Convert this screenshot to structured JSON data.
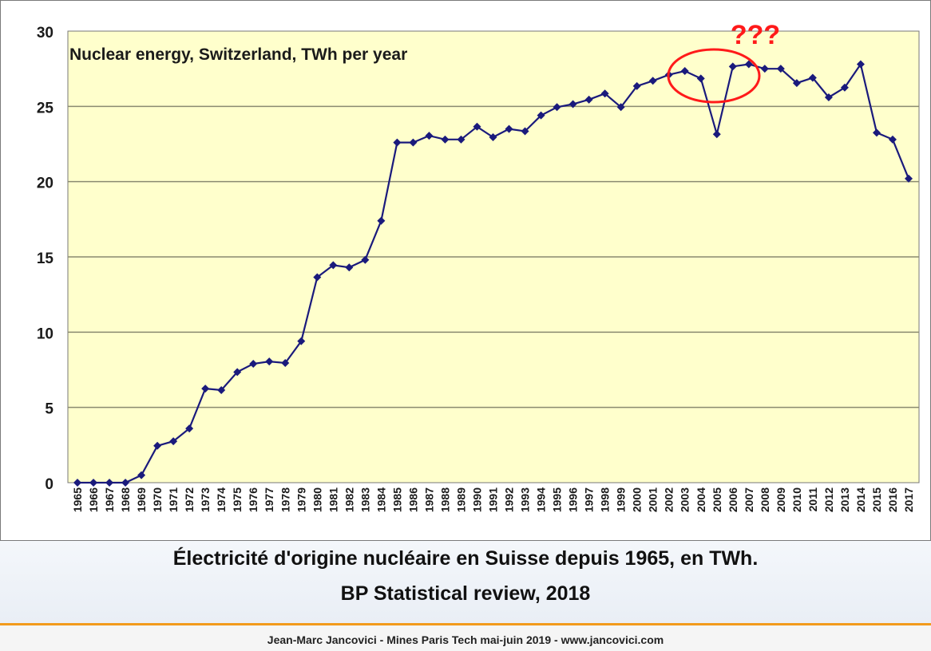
{
  "chart_data": {
    "type": "line",
    "title": "Nuclear energy, Switzerland, TWh per year",
    "xlabel": "",
    "ylabel": "",
    "ylim": [
      0,
      30
    ],
    "yticks": [
      "0",
      "5",
      "10",
      "15",
      "20",
      "25",
      "30"
    ],
    "grid": true,
    "categories": [
      "1965",
      "1966",
      "1967",
      "1968",
      "1969",
      "1970",
      "1971",
      "1972",
      "1973",
      "1974",
      "1975",
      "1976",
      "1977",
      "1978",
      "1979",
      "1980",
      "1981",
      "1982",
      "1983",
      "1984",
      "1985",
      "1986",
      "1987",
      "1988",
      "1989",
      "1990",
      "1991",
      "1992",
      "1993",
      "1994",
      "1995",
      "1996",
      "1997",
      "1998",
      "1999",
      "2000",
      "2001",
      "2002",
      "2003",
      "2004",
      "2005",
      "2006",
      "2007",
      "2008",
      "2009",
      "2010",
      "2011",
      "2012",
      "2013",
      "2014",
      "2015",
      "2016",
      "2017"
    ],
    "values": [
      0,
      0,
      0,
      0,
      0.5,
      2.45,
      2.75,
      3.6,
      6.25,
      6.15,
      7.35,
      7.9,
      8.05,
      7.95,
      9.4,
      13.65,
      14.45,
      14.3,
      14.8,
      17.4,
      22.6,
      22.6,
      23.05,
      22.8,
      22.8,
      23.65,
      22.95,
      23.5,
      23.35,
      24.4,
      24.95,
      25.15,
      25.45,
      25.85,
      24.95,
      26.35,
      26.7,
      27.1,
      27.35,
      26.85,
      23.15,
      27.65,
      27.8,
      27.5,
      27.5,
      26.55,
      26.9,
      25.6,
      26.25,
      27.8,
      23.25,
      22.8,
      20.2
    ],
    "series_color": "#1a1a7c",
    "annotation": {
      "text": "???",
      "color": "#ff1a1a",
      "highlight": "2003–2007"
    },
    "colors": {
      "plot_background": "#ffffcc",
      "gridline": "#8a8a70"
    }
  },
  "caption": {
    "title": "Électricité d'origine nucléaire en Suisse depuis 1965, en TWh.",
    "source": "BP Statistical review, 2018"
  },
  "footer": {
    "text": "Jean-Marc Jancovici - Mines Paris Tech mai-juin 2019 - www.jancovici.com"
  }
}
